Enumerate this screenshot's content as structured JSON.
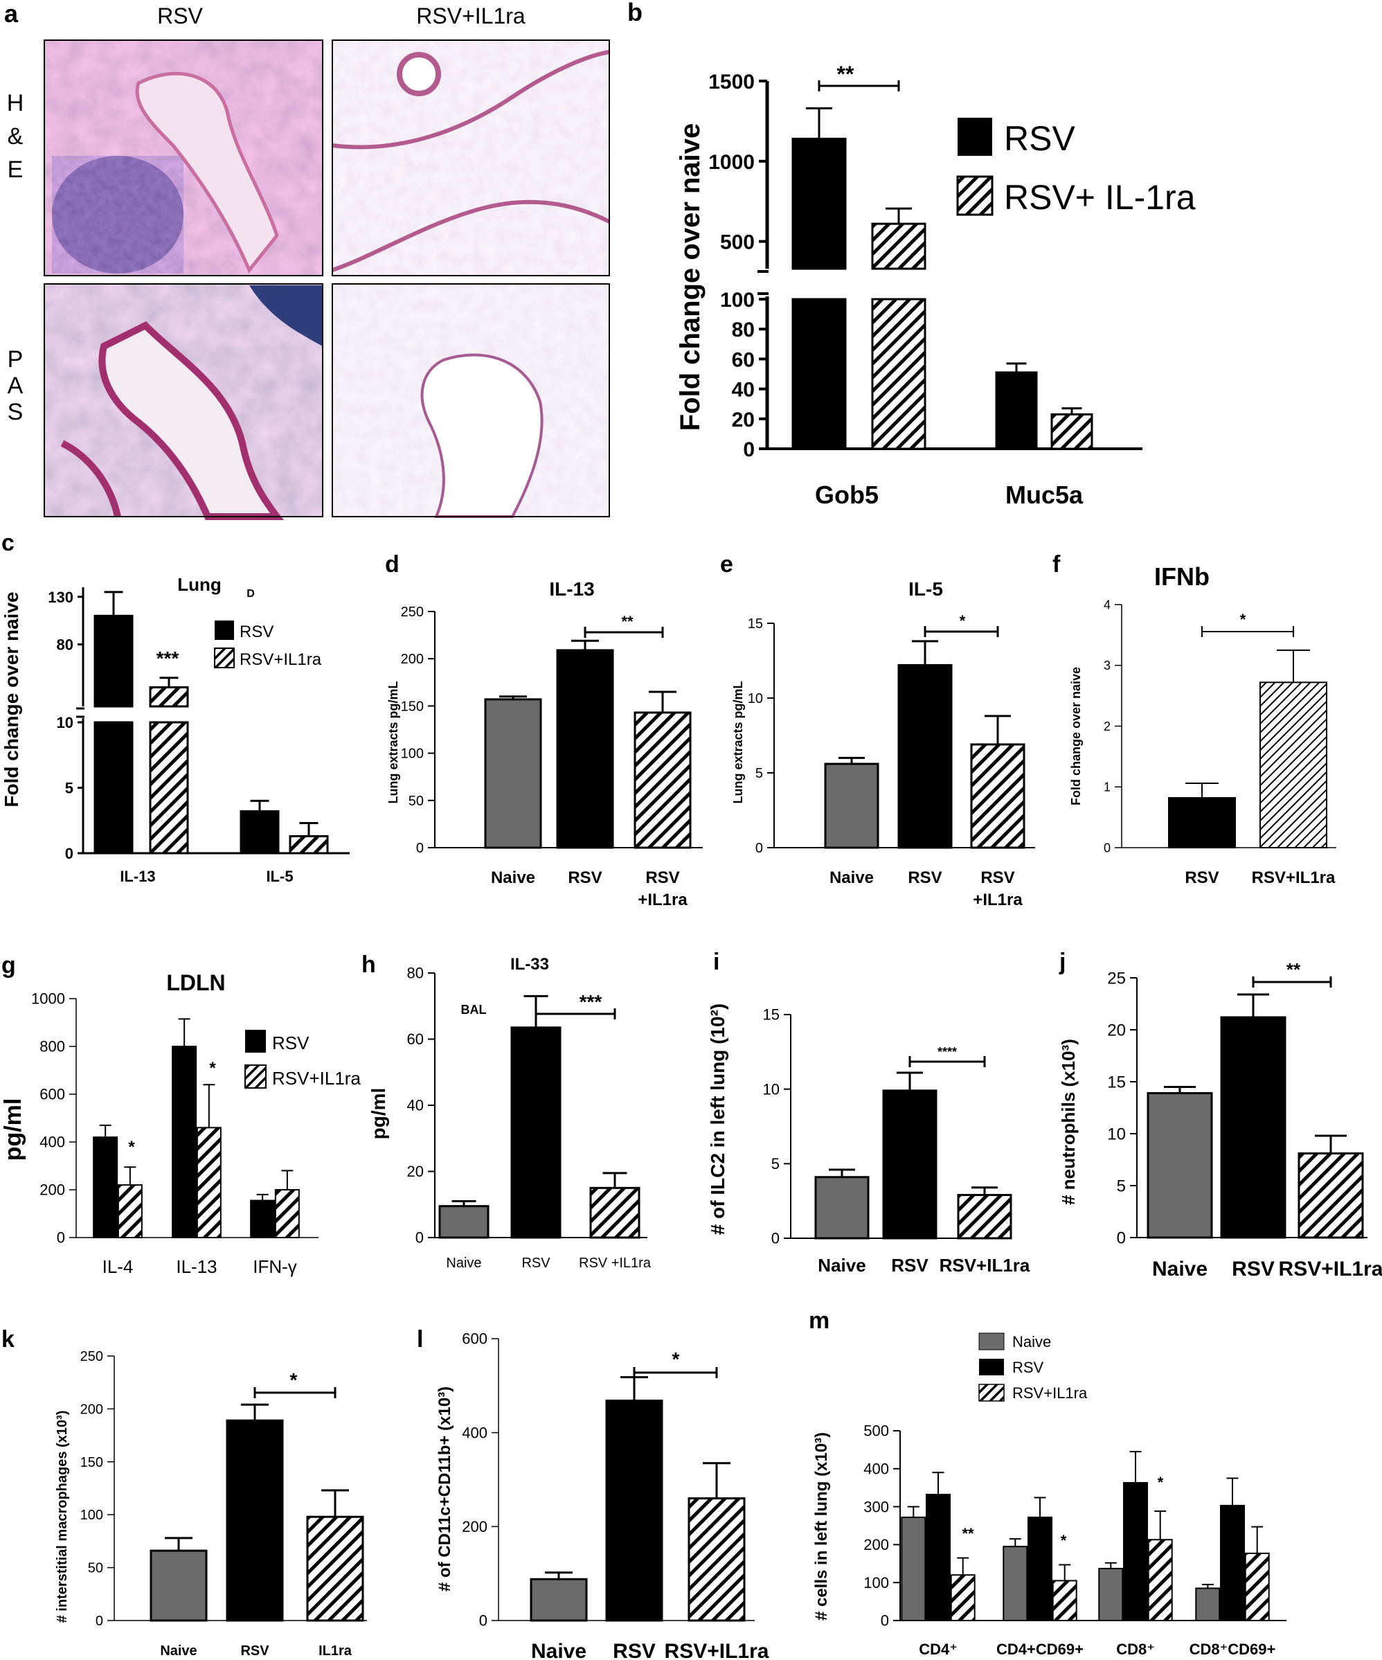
{
  "colors": {
    "black": "#000000",
    "gray": "#6b6b6b",
    "hatch": "#ffffff",
    "he_pink": "#d9a6c8",
    "he_purple": "#5a3d8c",
    "pas_pink": "#c77aa8",
    "pas_blue": "#3b4f8a"
  },
  "panel_a": {
    "letter": "a",
    "col_labels": [
      "RSV",
      "RSV+IL1ra"
    ],
    "row_labels": [
      "H&E",
      "PAS"
    ],
    "row_label_chars": [
      [
        "H",
        "&",
        "E"
      ],
      [
        "P",
        "A",
        "S"
      ]
    ],
    "images": [
      {
        "name": "he-rsv-micrograph",
        "kind": "he"
      },
      {
        "name": "he-rsv-il1ra-micrograph",
        "kind": "he-light"
      },
      {
        "name": "pas-rsv-micrograph",
        "kind": "pas"
      },
      {
        "name": "pas-rsv-il1ra-micrograph",
        "kind": "pas-light"
      }
    ]
  },
  "chart_data": [
    {
      "panel": "b",
      "type": "bar",
      "categories": [
        "Gob5",
        "Muc5a"
      ],
      "series": [
        {
          "name": "RSV",
          "style": "black",
          "values": [
            1140,
            51
          ],
          "errors": [
            190,
            6
          ]
        },
        {
          "name": "RSV+ IL-1ra",
          "style": "hatch",
          "values": [
            610,
            23
          ],
          "errors": [
            95,
            4
          ]
        }
      ],
      "ylabel": "Fold change over naive",
      "axis_break": {
        "lower": [
          0,
          100
        ],
        "upper": [
          330,
          1500
        ]
      },
      "yticks_lower": [
        0,
        20,
        40,
        60,
        80,
        100
      ],
      "yticks_upper": [
        500,
        1000,
        1500
      ],
      "significance": [
        {
          "label": "**"
        }
      ],
      "legend": "top-right"
    },
    {
      "panel": "c",
      "type": "bar",
      "title": "Lung",
      "subtitle": "D",
      "categories": [
        "IL-13",
        "IL-5"
      ],
      "series": [
        {
          "name": "RSV",
          "style": "black",
          "values": [
            110,
            3.2
          ],
          "errors": [
            25,
            0.8
          ]
        },
        {
          "name": "RSV+IL1ra",
          "style": "hatch",
          "values": [
            35,
            1.3
          ],
          "errors": [
            10,
            1.0
          ]
        }
      ],
      "ylabel": "Fold change over naive",
      "axis_break": {
        "lower": [
          0,
          10
        ],
        "upper": [
          15,
          140
        ]
      },
      "yticks_lower": [
        0,
        5,
        10
      ],
      "yticks_upper": [
        80,
        130
      ],
      "significance": [
        {
          "label": "***"
        }
      ],
      "legend": "top-right"
    },
    {
      "panel": "d",
      "type": "bar",
      "title": "IL-13",
      "categories": [
        "Naive",
        "RSV",
        "RSV\n+IL1ra"
      ],
      "values": [
        157,
        209,
        143
      ],
      "errors": [
        3,
        10,
        22
      ],
      "styles": [
        "gray",
        "black",
        "hatch"
      ],
      "ylabel": "Lung extracts pg/mL",
      "ylim": [
        0,
        250
      ],
      "yticks": [
        0,
        50,
        100,
        150,
        200,
        250
      ],
      "significance": [
        {
          "label": "**"
        }
      ]
    },
    {
      "panel": "e",
      "type": "bar",
      "title": "IL-5",
      "categories": [
        "Naive",
        "RSV",
        "RSV\n+IL1ra"
      ],
      "values": [
        5.6,
        12.2,
        6.9
      ],
      "errors": [
        0.4,
        1.6,
        1.9
      ],
      "styles": [
        "gray",
        "black",
        "hatch"
      ],
      "ylabel": "Lung extracts pg/mL",
      "ylim": [
        0,
        15
      ],
      "yticks": [
        0,
        5,
        10,
        15
      ],
      "significance": [
        {
          "label": "*"
        }
      ]
    },
    {
      "panel": "f",
      "type": "bar",
      "title": "IFNb",
      "categories": [
        "RSV",
        "RSV+IL1ra"
      ],
      "values": [
        0.82,
        2.72
      ],
      "errors": [
        0.24,
        0.53
      ],
      "styles": [
        "black",
        "hatch-thin"
      ],
      "ylabel": "Fold change over naive",
      "ylim": [
        0,
        4
      ],
      "yticks": [
        0,
        1,
        2,
        3,
        4
      ],
      "significance": [
        {
          "label": "*"
        }
      ]
    },
    {
      "panel": "g",
      "type": "bar",
      "title": "LDLN",
      "categories": [
        "IL-4",
        "IL-13",
        "IFN-γ"
      ],
      "series": [
        {
          "name": "RSV",
          "style": "black",
          "values": [
            420,
            800,
            155
          ],
          "errors": [
            50,
            115,
            25
          ]
        },
        {
          "name": "RSV+IL1ra",
          "style": "hatch",
          "values": [
            220,
            460,
            200
          ],
          "errors": [
            75,
            180,
            80
          ]
        }
      ],
      "ylabel": "pg/ml",
      "ylim": [
        0,
        1000
      ],
      "yticks": [
        0,
        200,
        400,
        600,
        800,
        1000
      ],
      "marks": [
        "*",
        "*"
      ],
      "legend": "top-right"
    },
    {
      "panel": "h",
      "type": "bar",
      "title": "IL-33",
      "annotation": "BAL",
      "categories": [
        "Naive",
        "RSV",
        "RSV +IL1ra"
      ],
      "values": [
        9.5,
        63.5,
        15
      ],
      "errors": [
        1.5,
        9.5,
        4.5
      ],
      "styles": [
        "gray",
        "black",
        "hatch"
      ],
      "ylabel": "pg/ml",
      "ylim": [
        0,
        80
      ],
      "yticks": [
        0,
        20,
        40,
        60,
        80
      ],
      "significance": [
        {
          "label": "***"
        }
      ]
    },
    {
      "panel": "i",
      "type": "bar",
      "categories": [
        "Naive",
        "RSV",
        "RSV+IL1ra"
      ],
      "values": [
        4.1,
        9.9,
        2.9
      ],
      "errors": [
        0.5,
        1.2,
        0.5
      ],
      "styles": [
        "gray",
        "black",
        "hatch"
      ],
      "ylabel": "# of ILC2 in left lung  (10²)",
      "ylim": [
        0,
        15
      ],
      "yticks": [
        0,
        5,
        10,
        15
      ],
      "significance": [
        {
          "label": "****"
        }
      ]
    },
    {
      "panel": "j",
      "type": "bar",
      "categories": [
        "Naive",
        "RSV",
        "RSV+IL1ra"
      ],
      "values": [
        13.9,
        21.2,
        8.1
      ],
      "errors": [
        0.6,
        2.2,
        1.7
      ],
      "styles": [
        "gray",
        "black",
        "hatch"
      ],
      "ylabel": "# neutrophils (x10³)",
      "ylim": [
        0,
        25
      ],
      "yticks": [
        0,
        5,
        10,
        15,
        20,
        25
      ],
      "significance": [
        {
          "label": "**"
        }
      ]
    },
    {
      "panel": "k",
      "type": "bar",
      "categories": [
        "Naive",
        "RSV",
        "IL1ra"
      ],
      "values": [
        66,
        189,
        98
      ],
      "errors": [
        12,
        15,
        25
      ],
      "styles": [
        "gray",
        "black",
        "hatch"
      ],
      "ylabel": "# interstitial macrophages (x10³)",
      "ylim": [
        0,
        250
      ],
      "yticks": [
        0,
        50,
        100,
        150,
        200,
        250
      ],
      "significance": [
        {
          "label": "*"
        }
      ]
    },
    {
      "panel": "l",
      "type": "bar",
      "categories": [
        "Naive",
        "RSV",
        "RSV+IL1ra"
      ],
      "values": [
        88,
        468,
        260
      ],
      "errors": [
        14,
        50,
        75
      ],
      "styles": [
        "gray",
        "black",
        "hatch"
      ],
      "ylabel": "# of CD11c+CD11b+ (x10³)",
      "ylim": [
        0,
        600
      ],
      "yticks": [
        0,
        200,
        400,
        600
      ],
      "significance": [
        {
          "label": "*"
        }
      ]
    },
    {
      "panel": "m",
      "type": "bar",
      "categories": [
        "CD4⁺",
        "CD4+CD69+",
        "CD8⁺",
        "CD8⁺CD69+"
      ],
      "series": [
        {
          "name": "Naive",
          "style": "gray",
          "values": [
            272,
            195,
            137,
            85
          ],
          "errors": [
            28,
            20,
            15,
            10
          ]
        },
        {
          "name": "RSV",
          "style": "black",
          "values": [
            332,
            272,
            363,
            303
          ],
          "errors": [
            58,
            52,
            82,
            72
          ]
        },
        {
          "name": "RSV+IL1ra",
          "style": "hatch",
          "values": [
            120,
            105,
            213,
            177
          ],
          "errors": [
            45,
            42,
            75,
            70
          ]
        }
      ],
      "ylabel": "# cells in  left lung (x10³)",
      "ylim": [
        0,
        500
      ],
      "yticks": [
        0,
        100,
        200,
        300,
        400,
        500
      ],
      "marks": [
        "**",
        "*",
        "*",
        ""
      ],
      "legend": "top"
    }
  ],
  "letters": {
    "a": "a",
    "b": "b",
    "c": "c",
    "d": "d",
    "e": "e",
    "f": "f",
    "g": "g",
    "h": "h",
    "i": "i",
    "j": "j",
    "k": "k",
    "l": "l",
    "m": "m"
  }
}
